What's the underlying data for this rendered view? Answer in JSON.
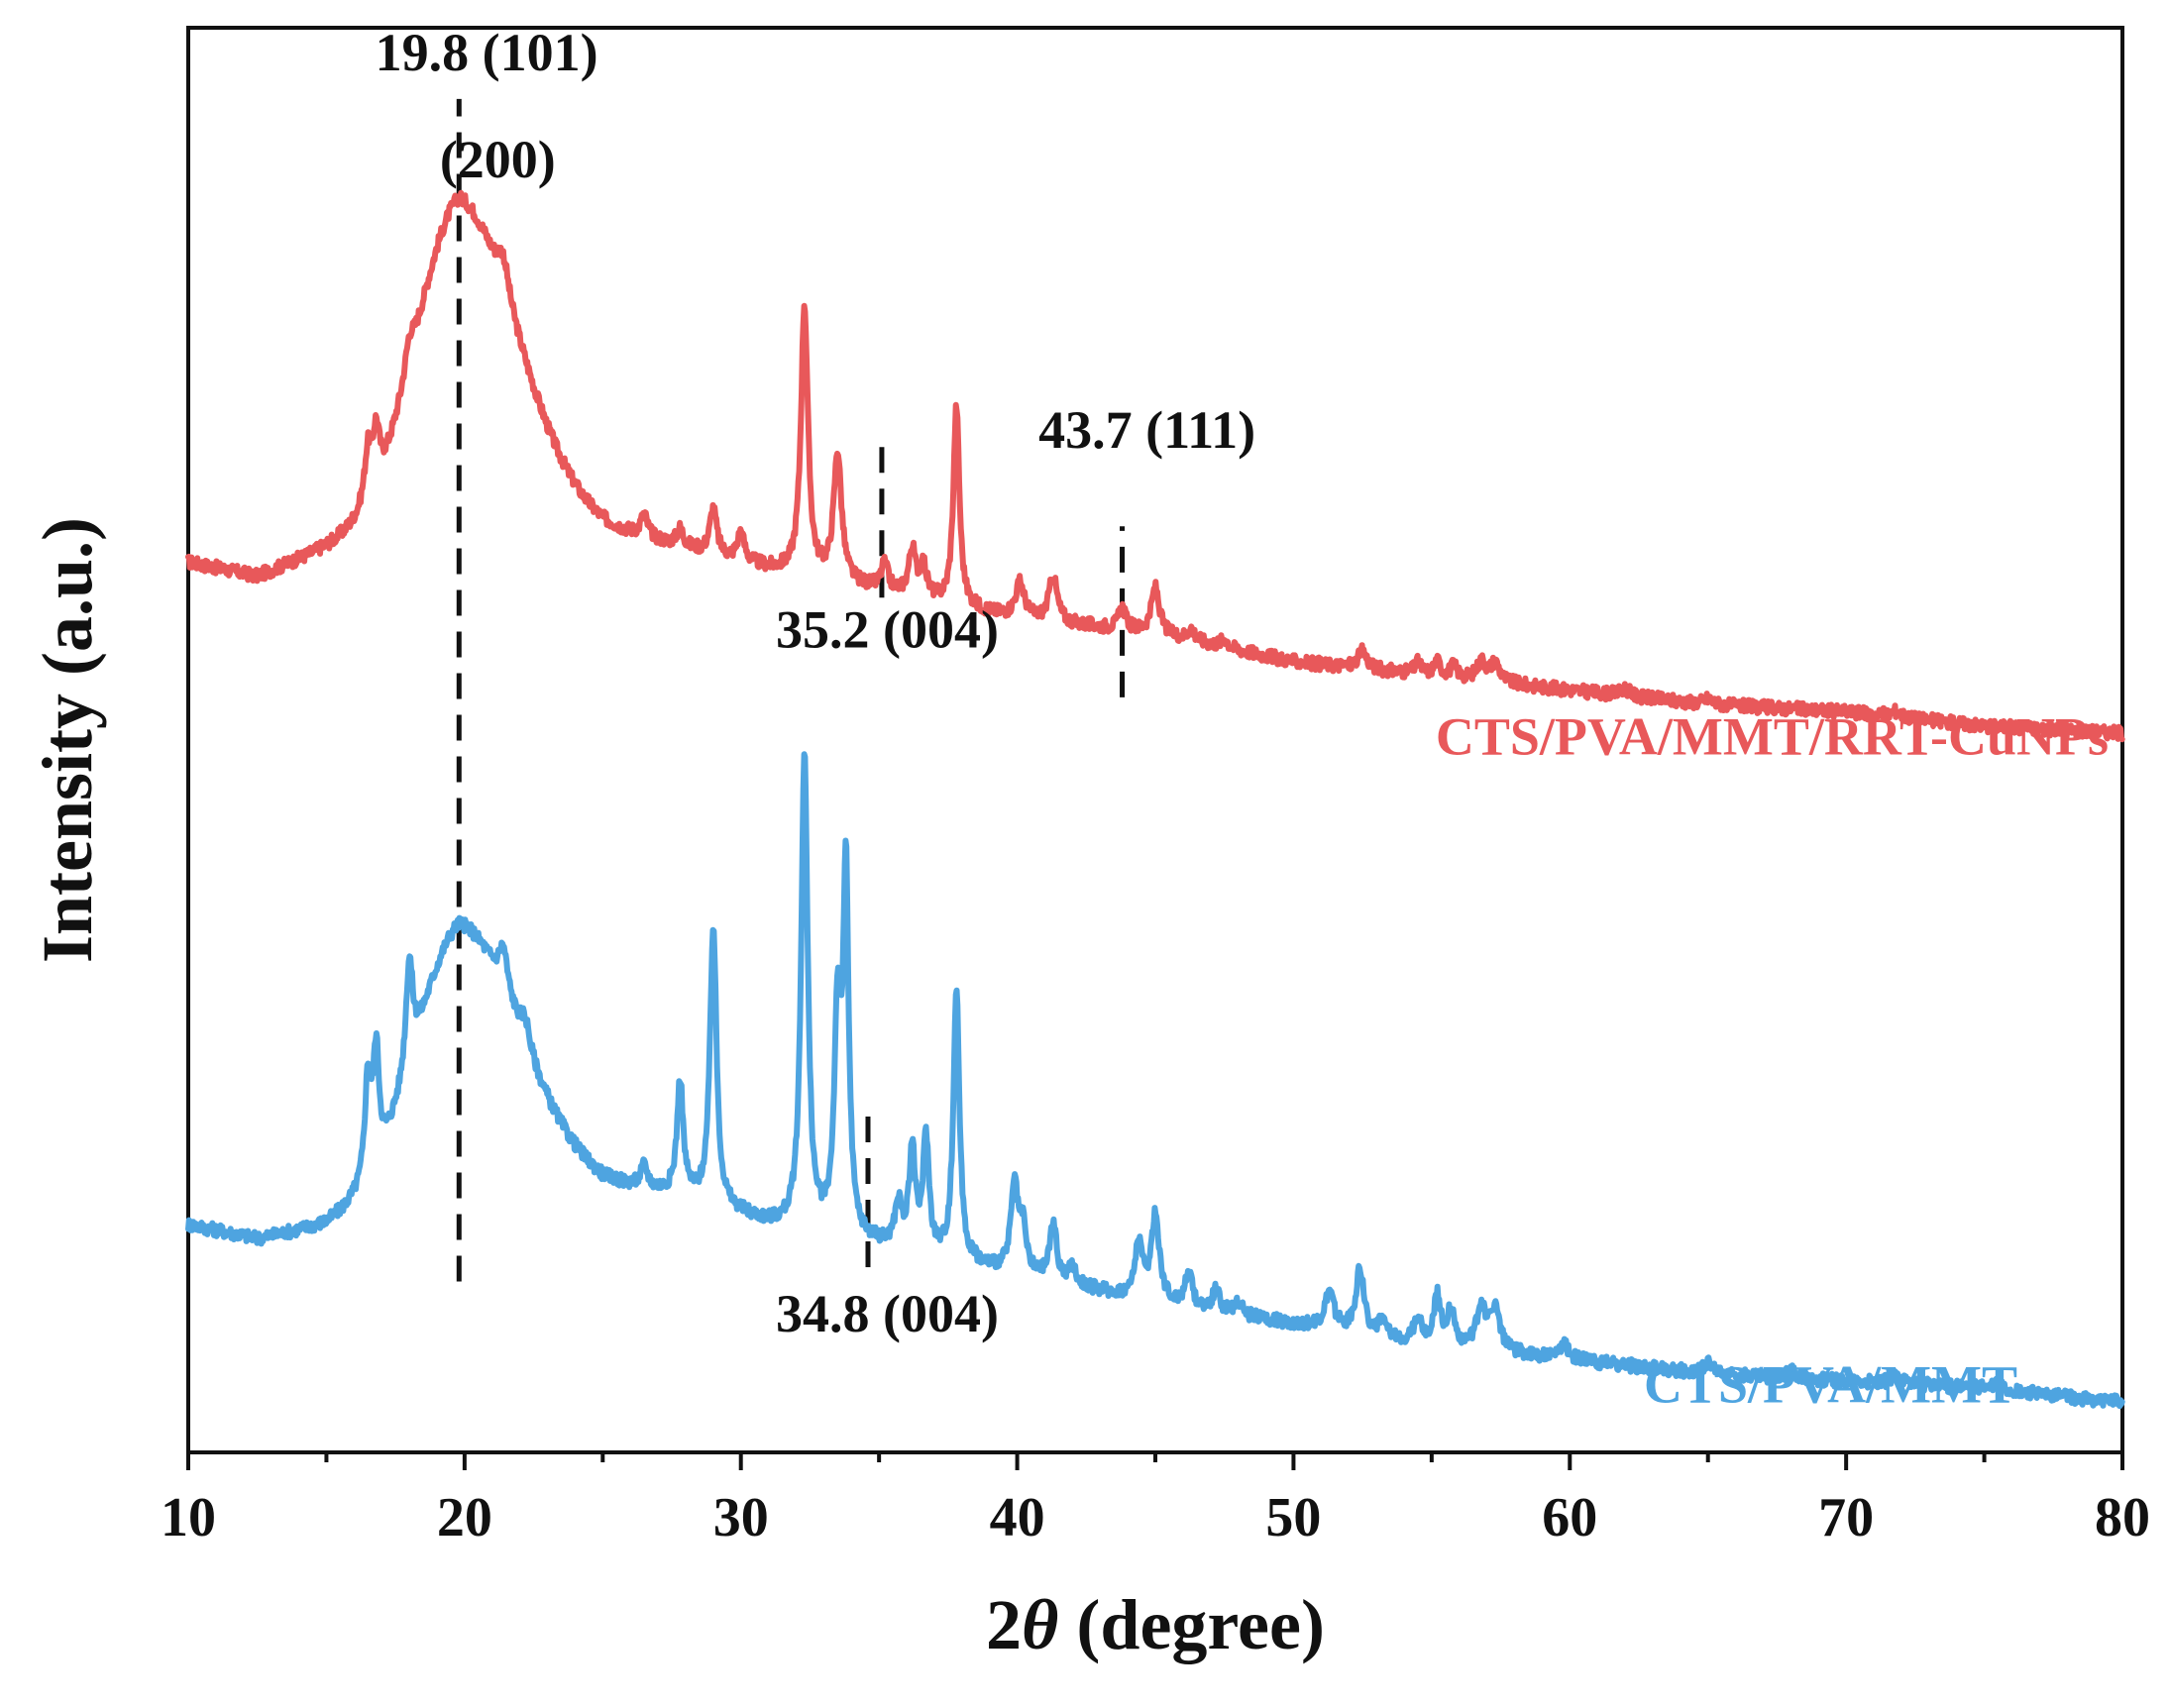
{
  "chart_data": {
    "type": "line",
    "title": "",
    "xlabel_prefix": "2",
    "xlabel_symbol": "θ",
    "xlabel_suffix": " (degree)",
    "ylabel": "Intensity (a.u.)",
    "xlim": [
      10,
      80
    ],
    "ylim": [
      0,
      100
    ],
    "xticks": [
      10,
      20,
      30,
      40,
      50,
      60,
      70,
      80
    ],
    "yticks_shown": false,
    "grid": false,
    "series": [
      {
        "name": "CTS/PVA/MMT/RRT-CuNPs",
        "color": "#e8585a",
        "baseline": [
          [
            10,
            62.5
          ],
          [
            12.5,
            61.5
          ],
          [
            15,
            63.5
          ],
          [
            17,
            65
          ],
          [
            19.8,
            70
          ],
          [
            22,
            68
          ],
          [
            25,
            65
          ],
          [
            28,
            63.5
          ],
          [
            31,
            62
          ],
          [
            35,
            60.5
          ],
          [
            40,
            58.5
          ],
          [
            45,
            57.5
          ],
          [
            50,
            55.5
          ],
          [
            55,
            54.5
          ],
          [
            60,
            53.5
          ],
          [
            65,
            52.5
          ],
          [
            70,
            52
          ],
          [
            75,
            51
          ],
          [
            80,
            50.5
          ]
        ],
        "hump": {
          "center": 19.8,
          "height": 18,
          "width_left": 1.6,
          "width_right": 2.0
        },
        "peaks": [
          {
            "x": 16.5,
            "h": 3.5,
            "w": 0.15
          },
          {
            "x": 16.8,
            "h": 4.0,
            "w": 0.15
          },
          {
            "x": 18.0,
            "h": 2.0,
            "w": 0.2
          },
          {
            "x": 21.4,
            "h": 2.5,
            "w": 0.25
          },
          {
            "x": 26.5,
            "h": 1.5,
            "w": 0.15
          },
          {
            "x": 27.8,
            "h": 1.2,
            "w": 0.15
          },
          {
            "x": 29.0,
            "h": 3.2,
            "w": 0.15
          },
          {
            "x": 30.0,
            "h": 2.0,
            "w": 0.15
          },
          {
            "x": 32.3,
            "h": 19.0,
            "w": 0.15
          },
          {
            "x": 33.5,
            "h": 9.0,
            "w": 0.17
          },
          {
            "x": 35.2,
            "h": 1.8,
            "w": 0.15
          },
          {
            "x": 36.2,
            "h": 3.2,
            "w": 0.15
          },
          {
            "x": 36.6,
            "h": 2.2,
            "w": 0.15
          },
          {
            "x": 37.8,
            "h": 14.0,
            "w": 0.13
          },
          {
            "x": 40.1,
            "h": 2.5,
            "w": 0.2
          },
          {
            "x": 41.3,
            "h": 3.2,
            "w": 0.18
          },
          {
            "x": 43.8,
            "h": 1.5,
            "w": 0.15
          },
          {
            "x": 45.0,
            "h": 3.2,
            "w": 0.17
          },
          {
            "x": 46.3,
            "h": 0.8,
            "w": 0.15
          },
          {
            "x": 47.5,
            "h": 0.6,
            "w": 0.15
          },
          {
            "x": 52.5,
            "h": 1.2,
            "w": 0.2
          },
          {
            "x": 54.5,
            "h": 0.8,
            "w": 0.15
          },
          {
            "x": 55.2,
            "h": 1.0,
            "w": 0.15
          },
          {
            "x": 55.8,
            "h": 0.8,
            "w": 0.15
          },
          {
            "x": 56.8,
            "h": 1.3,
            "w": 0.2
          },
          {
            "x": 57.3,
            "h": 1.3,
            "w": 0.2
          },
          {
            "x": 62.0,
            "h": 0.5,
            "w": 0.2
          },
          {
            "x": 65.0,
            "h": 0.4,
            "w": 0.2
          },
          {
            "x": 71.8,
            "h": 0.4,
            "w": 0.2
          }
        ]
      },
      {
        "name": "CTS/PVA/MMT",
        "color": "#4ea4e0",
        "baseline": [
          [
            10,
            16
          ],
          [
            12.5,
            15
          ],
          [
            15,
            16
          ],
          [
            17,
            18
          ],
          [
            19.8,
            23
          ],
          [
            22,
            22
          ],
          [
            25,
            19
          ],
          [
            28,
            18
          ],
          [
            31,
            16
          ],
          [
            35,
            14.5
          ],
          [
            40,
            12.5
          ],
          [
            45,
            10.5
          ],
          [
            50,
            9
          ],
          [
            55,
            7.5
          ],
          [
            60,
            6.5
          ],
          [
            65,
            5.5
          ],
          [
            70,
            5
          ],
          [
            75,
            4.5
          ],
          [
            80,
            3.5
          ]
        ],
        "hump": {
          "center": 19.8,
          "height": 14,
          "width_left": 1.6,
          "width_right": 2.0
        },
        "peaks": [
          {
            "x": 16.5,
            "h": 7.0,
            "w": 0.13
          },
          {
            "x": 16.8,
            "h": 8.0,
            "w": 0.13
          },
          {
            "x": 18.0,
            "h": 7.5,
            "w": 0.15
          },
          {
            "x": 21.4,
            "h": 3.0,
            "w": 0.2
          },
          {
            "x": 22.2,
            "h": 1.8,
            "w": 0.2
          },
          {
            "x": 26.5,
            "h": 1.5,
            "w": 0.15
          },
          {
            "x": 27.8,
            "h": 8.0,
            "w": 0.13
          },
          {
            "x": 29.0,
            "h": 19.5,
            "w": 0.14
          },
          {
            "x": 32.3,
            "h": 33.5,
            "w": 0.14
          },
          {
            "x": 33.5,
            "h": 15.0,
            "w": 0.14
          },
          {
            "x": 33.8,
            "h": 25.0,
            "w": 0.12
          },
          {
            "x": 35.7,
            "h": 3.0,
            "w": 0.15
          },
          {
            "x": 36.2,
            "h": 7.0,
            "w": 0.13
          },
          {
            "x": 36.7,
            "h": 8.0,
            "w": 0.13
          },
          {
            "x": 37.8,
            "h": 19.0,
            "w": 0.13
          },
          {
            "x": 39.9,
            "h": 6.0,
            "w": 0.15
          },
          {
            "x": 40.2,
            "h": 3.0,
            "w": 0.15
          },
          {
            "x": 41.3,
            "h": 4.0,
            "w": 0.15
          },
          {
            "x": 42.0,
            "h": 1.2,
            "w": 0.15
          },
          {
            "x": 44.4,
            "h": 4.0,
            "w": 0.15
          },
          {
            "x": 45.0,
            "h": 6.0,
            "w": 0.18
          },
          {
            "x": 46.2,
            "h": 2.5,
            "w": 0.15
          },
          {
            "x": 47.2,
            "h": 1.5,
            "w": 0.15
          },
          {
            "x": 48.0,
            "h": 1.0,
            "w": 0.15
          },
          {
            "x": 51.3,
            "h": 2.5,
            "w": 0.2
          },
          {
            "x": 52.4,
            "h": 4.5,
            "w": 0.18
          },
          {
            "x": 53.2,
            "h": 1.0,
            "w": 0.15
          },
          {
            "x": 54.5,
            "h": 1.8,
            "w": 0.15
          },
          {
            "x": 55.2,
            "h": 3.5,
            "w": 0.15
          },
          {
            "x": 55.7,
            "h": 2.5,
            "w": 0.15
          },
          {
            "x": 56.8,
            "h": 3.0,
            "w": 0.2
          },
          {
            "x": 57.3,
            "h": 3.0,
            "w": 0.2
          },
          {
            "x": 59.8,
            "h": 1.0,
            "w": 0.2
          },
          {
            "x": 65.0,
            "h": 0.8,
            "w": 0.2
          },
          {
            "x": 68.0,
            "h": 0.6,
            "w": 0.2
          },
          {
            "x": 71.8,
            "h": 0.6,
            "w": 0.2
          },
          {
            "x": 75.5,
            "h": 0.5,
            "w": 0.2
          }
        ]
      }
    ],
    "guides": [
      {
        "x": 19.8,
        "y_from": 12,
        "y_to": 95
      },
      {
        "x": 35.1,
        "y_from": 60,
        "y_to": 71
      },
      {
        "x": 43.8,
        "y_from": 53,
        "y_to": 65
      },
      {
        "x": 34.6,
        "y_from": 13,
        "y_to": 24
      }
    ],
    "annotations": [
      {
        "text": "19.8 (101)",
        "x": 20.8,
        "y": 97,
        "anchor": "middle"
      },
      {
        "text": "(200)",
        "x": 21.2,
        "y": 89.5,
        "anchor": "middle"
      },
      {
        "text": "43.7 (111)",
        "x": 44.7,
        "y": 70.5,
        "anchor": "middle"
      },
      {
        "text": "35.2 (004)",
        "x": 35.3,
        "y": 56.5,
        "anchor": "middle"
      },
      {
        "text": "34.8 (004)",
        "x": 35.3,
        "y": 8.5,
        "anchor": "middle"
      }
    ],
    "series_labels": [
      {
        "text": "CTS/PVA/MMT/RRT-CuNPs",
        "x": 79.5,
        "y": 49,
        "anchor": "end",
        "series": 0
      },
      {
        "text": "CTS/PVA/MMT",
        "x": 76.2,
        "y": 3.5,
        "anchor": "end",
        "series": 1
      }
    ]
  }
}
